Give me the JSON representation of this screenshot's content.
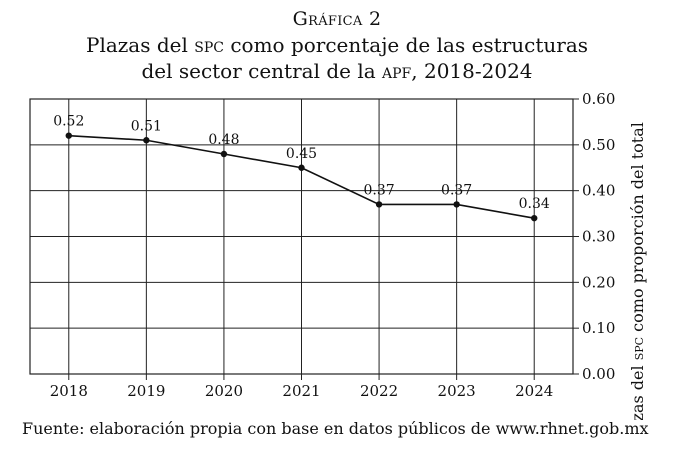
{
  "figure_label": "Gráfica 2",
  "title_lines": [
    [
      "Plazas del ",
      "spc",
      " como porcentaje de las estructuras"
    ],
    [
      "del sector central de la ",
      "apf",
      ", 2018-2024"
    ]
  ],
  "source_text": "Fuente: elaboración propia con base en datos públicos de www.rhnet.gob.mx",
  "colors": {
    "line": "#111111",
    "grid": "#222222",
    "background": "#ffffff"
  },
  "chart_data": {
    "type": "line",
    "categories": [
      "2018",
      "2019",
      "2020",
      "2021",
      "2022",
      "2023",
      "2024"
    ],
    "series": [
      {
        "name": "Plazas del SPC como proporción del total",
        "values": [
          0.52,
          0.51,
          0.48,
          0.45,
          0.37,
          0.37,
          0.34
        ],
        "labels": [
          "0.52",
          "0.51",
          "0.48",
          "0.45",
          "0.37",
          "0.37",
          "0.34"
        ]
      }
    ],
    "y_ticks": [
      "0.00",
      "0.10",
      "0.20",
      "0.30",
      "0.40",
      "0.50",
      "0.60"
    ],
    "ylim": [
      0,
      0.6
    ],
    "ylabel_parts": [
      "Plazas del ",
      "spc",
      " como proporción del total"
    ],
    "xlabel": "",
    "y_axis_position": "right",
    "grid": true
  }
}
